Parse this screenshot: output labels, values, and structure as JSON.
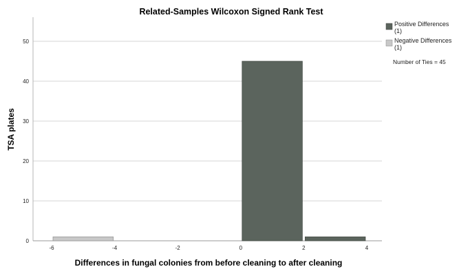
{
  "chart_data": {
    "type": "bar",
    "title": "Related-Samples Wilcoxon Signed Rank Test",
    "xlabel": "Differences in fungal colonies from before cleaning to after cleaning",
    "ylabel": "TSA plates",
    "xlim": [
      -6.5,
      4.5
    ],
    "ylim": [
      0,
      55
    ],
    "x_ticks": [
      "-6",
      "-4",
      "-2",
      "0",
      "2",
      "4"
    ],
    "x_tick_values": [
      -6,
      -4,
      -2,
      0,
      2,
      4
    ],
    "y_ticks": [
      "0",
      "10",
      "20",
      "30",
      "40",
      "50"
    ],
    "y_tick_values": [
      0,
      10,
      20,
      30,
      40,
      50
    ],
    "grid": true,
    "legend_position": "right",
    "bars": [
      {
        "x0": -6,
        "x1": -4,
        "value": 1,
        "series": "negative"
      },
      {
        "x0": 0,
        "x1": 2,
        "value": 45,
        "series": "positive"
      },
      {
        "x0": 2,
        "x1": 4,
        "value": 1,
        "series": "positive"
      }
    ],
    "legend": [
      {
        "key": "positive",
        "line1": "Positive Differences",
        "line2": "(1)",
        "color": "#5b645d"
      },
      {
        "key": "negative",
        "line1": "Negative Differences",
        "line2": "(1)",
        "color": "#c8c8c8"
      }
    ],
    "ties_note": "Number of Ties = 45"
  }
}
